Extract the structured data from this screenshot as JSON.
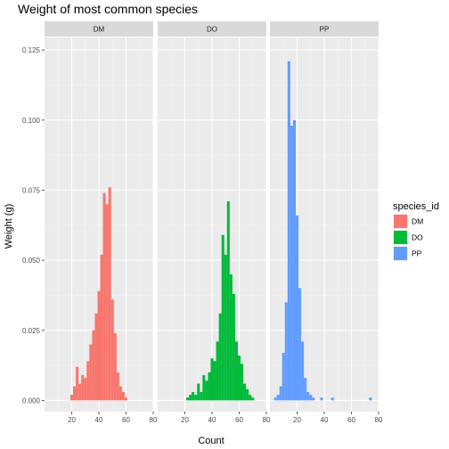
{
  "chart_data": {
    "type": "bar",
    "title": "Weight of most common species",
    "xlabel": "Count",
    "ylabel": "Weight (g)",
    "xlim": [
      0,
      80
    ],
    "ylim": [
      -0.004,
      0.1295
    ],
    "x_ticks": [
      20,
      40,
      60,
      80
    ],
    "y_ticks": [
      0,
      0.025,
      0.05,
      0.075,
      0.1,
      0.125
    ],
    "y_tick_labels": [
      "0.000",
      "0.025",
      "0.050",
      "0.075",
      "0.100",
      "0.125"
    ],
    "bin_width": 2,
    "grid": true,
    "legend": {
      "title": "species_id",
      "position": "right",
      "entries": [
        {
          "label": "DM",
          "color": "#F8766D"
        },
        {
          "label": "DO",
          "color": "#00BA38"
        },
        {
          "label": "PP",
          "color": "#619CFF"
        }
      ]
    },
    "panels": [
      {
        "name": "DM",
        "color": "#F8766D",
        "bins": [
          {
            "x": 20,
            "y": 0.002
          },
          {
            "x": 22,
            "y": 0.005
          },
          {
            "x": 24,
            "y": 0.012
          },
          {
            "x": 26,
            "y": 0.006
          },
          {
            "x": 28,
            "y": 0.009
          },
          {
            "x": 30,
            "y": 0.008
          },
          {
            "x": 32,
            "y": 0.014
          },
          {
            "x": 34,
            "y": 0.02
          },
          {
            "x": 36,
            "y": 0.025
          },
          {
            "x": 38,
            "y": 0.031
          },
          {
            "x": 40,
            "y": 0.039
          },
          {
            "x": 42,
            "y": 0.052
          },
          {
            "x": 44,
            "y": 0.074
          },
          {
            "x": 46,
            "y": 0.07
          },
          {
            "x": 48,
            "y": 0.076
          },
          {
            "x": 50,
            "y": 0.036
          },
          {
            "x": 52,
            "y": 0.024
          },
          {
            "x": 54,
            "y": 0.01
          },
          {
            "x": 56,
            "y": 0.005
          },
          {
            "x": 58,
            "y": 0.003
          },
          {
            "x": 60,
            "y": 0.001
          }
        ]
      },
      {
        "name": "DO",
        "color": "#00BA38",
        "bins": [
          {
            "x": 22,
            "y": 0.001
          },
          {
            "x": 24,
            "y": 0.002
          },
          {
            "x": 26,
            "y": 0.003
          },
          {
            "x": 28,
            "y": 0.002
          },
          {
            "x": 30,
            "y": 0.006
          },
          {
            "x": 32,
            "y": 0.003
          },
          {
            "x": 34,
            "y": 0.009
          },
          {
            "x": 36,
            "y": 0.007
          },
          {
            "x": 38,
            "y": 0.01
          },
          {
            "x": 40,
            "y": 0.015
          },
          {
            "x": 42,
            "y": 0.014
          },
          {
            "x": 44,
            "y": 0.021
          },
          {
            "x": 46,
            "y": 0.031
          },
          {
            "x": 48,
            "y": 0.059
          },
          {
            "x": 50,
            "y": 0.052
          },
          {
            "x": 52,
            "y": 0.071
          },
          {
            "x": 54,
            "y": 0.045
          },
          {
            "x": 56,
            "y": 0.038
          },
          {
            "x": 58,
            "y": 0.021
          },
          {
            "x": 60,
            "y": 0.016
          },
          {
            "x": 62,
            "y": 0.013
          },
          {
            "x": 64,
            "y": 0.006
          },
          {
            "x": 66,
            "y": 0.004
          },
          {
            "x": 68,
            "y": 0.002
          },
          {
            "x": 70,
            "y": 0.001
          }
        ]
      },
      {
        "name": "PP",
        "color": "#619CFF",
        "bins": [
          {
            "x": 4,
            "y": 0.001
          },
          {
            "x": 6,
            "y": 0.002
          },
          {
            "x": 8,
            "y": 0.005
          },
          {
            "x": 10,
            "y": 0.017
          },
          {
            "x": 12,
            "y": 0.035
          },
          {
            "x": 14,
            "y": 0.121
          },
          {
            "x": 16,
            "y": 0.098
          },
          {
            "x": 18,
            "y": 0.1
          },
          {
            "x": 20,
            "y": 0.066
          },
          {
            "x": 22,
            "y": 0.04
          },
          {
            "x": 24,
            "y": 0.021
          },
          {
            "x": 26,
            "y": 0.008
          },
          {
            "x": 28,
            "y": 0.003
          },
          {
            "x": 30,
            "y": 0.002
          },
          {
            "x": 32,
            "y": 0.001
          },
          {
            "x": 38,
            "y": 0.001
          },
          {
            "x": 46,
            "y": 0.001
          },
          {
            "x": 74,
            "y": 0.001
          }
        ]
      }
    ]
  }
}
